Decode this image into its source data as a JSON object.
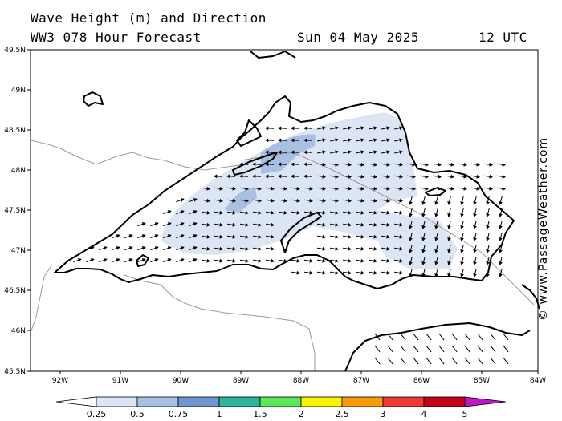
{
  "header": {
    "title": "Wave Height (m) and Direction",
    "subtitle": "WW3 078 Hour Forecast",
    "date": "Sun 04 May 2025",
    "time": "12 UTC"
  },
  "axes": {
    "lat_labels": [
      "49.5N",
      "49N",
      "48.5N",
      "48N",
      "47.5N",
      "47N",
      "46.5N",
      "46N",
      "45.5N"
    ],
    "lon_labels": [
      "92W",
      "91W",
      "90W",
      "89W",
      "88W",
      "87W",
      "86W",
      "85W",
      "84W"
    ]
  },
  "colorbar": {
    "ticks": [
      "0.25",
      "0.5",
      "0.75",
      "1",
      "1.5",
      "2",
      "2.5",
      "3",
      "4",
      "5"
    ],
    "colors": [
      "#ffffff",
      "#dbe5f4",
      "#a9c0e2",
      "#6f96cf",
      "#2ab49a",
      "#5be85a",
      "#f7f306",
      "#f99a0b",
      "#ee3a35",
      "#c4001a",
      "#c115c8"
    ]
  },
  "copyright": "© www.PassageWeather.com"
}
